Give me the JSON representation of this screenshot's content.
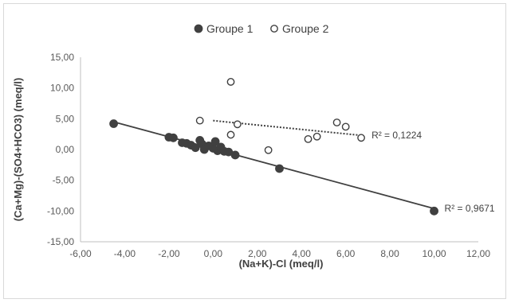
{
  "chart_data": {
    "type": "scatter",
    "xlabel": "(Na+K)-Cl (meq/l)",
    "ylabel": "(Ca+Mg)-(SO4+HCO3) (meq/l)",
    "xlim": [
      -6,
      12
    ],
    "ylim": [
      -15,
      15
    ],
    "x_ticks": [
      "-6,00",
      "-4,00",
      "-2,00",
      "0,00",
      "2,00",
      "4,00",
      "6,00",
      "8,00",
      "10,00",
      "12,00"
    ],
    "y_ticks": [
      "15,00",
      "10,00",
      "5,00",
      "0,00",
      "-5,00",
      "-10,00",
      "-15,00"
    ],
    "grid": false,
    "legend_position": "top",
    "series": [
      {
        "name": "Groupe 1",
        "marker": "filled-circle",
        "color": "#404040",
        "points": [
          [
            -4.5,
            4.2
          ],
          [
            -2.0,
            2.0
          ],
          [
            -1.8,
            1.9
          ],
          [
            -1.4,
            1.1
          ],
          [
            -1.2,
            1.0
          ],
          [
            -1.0,
            0.7
          ],
          [
            -0.8,
            0.3
          ],
          [
            -0.6,
            1.5
          ],
          [
            -0.5,
            0.9
          ],
          [
            -0.4,
            0.0
          ],
          [
            -0.2,
            0.6
          ],
          [
            0.0,
            0.2
          ],
          [
            0.1,
            1.3
          ],
          [
            0.2,
            -0.2
          ],
          [
            0.35,
            0.4
          ],
          [
            0.5,
            -0.3
          ],
          [
            0.7,
            -0.4
          ],
          [
            1.0,
            -0.9
          ],
          [
            3.0,
            -3.1
          ],
          [
            10.0,
            -10.0
          ]
        ],
        "trendline": {
          "x": [
            -4.5,
            10.0
          ],
          "y": [
            4.5,
            -9.6
          ],
          "style": "solid",
          "r2_label": "R² = 0,9671"
        }
      },
      {
        "name": "Groupe 2",
        "marker": "open-circle",
        "color": "#404040",
        "points": [
          [
            -0.6,
            4.7
          ],
          [
            0.8,
            11.0
          ],
          [
            0.8,
            2.4
          ],
          [
            1.1,
            4.1
          ],
          [
            2.5,
            -0.1
          ],
          [
            4.3,
            1.7
          ],
          [
            4.7,
            2.1
          ],
          [
            5.6,
            4.4
          ],
          [
            6.0,
            3.7
          ],
          [
            6.7,
            1.9
          ]
        ],
        "trendline": {
          "x": [
            0.0,
            6.7
          ],
          "y": [
            4.7,
            2.3
          ],
          "style": "dotted",
          "r2_label": "R² = 0,1224"
        }
      }
    ]
  }
}
